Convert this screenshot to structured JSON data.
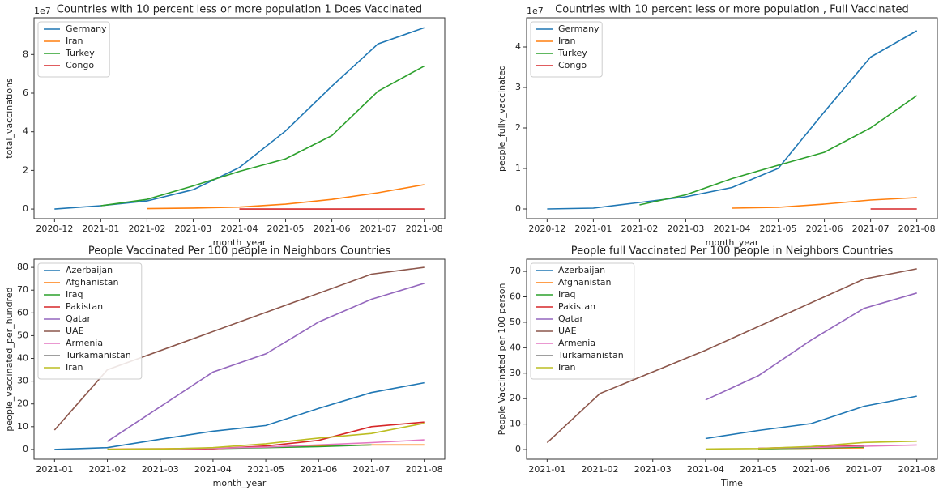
{
  "chart_data": [
    {
      "type": "line",
      "title": "Countries with 10 percent less or more population 1 Does Vaccinated",
      "x_label": "month_year",
      "y_label": "total_vaccinations",
      "y_offset_label": "1e7",
      "categories": [
        "2020-12",
        "2021-01",
        "2021-02",
        "2021-03",
        "2021-04",
        "2021-05",
        "2021-06",
        "2021-07",
        "2021-08"
      ],
      "ylim": [
        -0.5,
        9.9
      ],
      "yticks": [
        0,
        2,
        4,
        6,
        8
      ],
      "legend": "upper left",
      "series": [
        {
          "name": "Germany",
          "color": "#1f77b4",
          "x": [
            "2020-12",
            "2021-01",
            "2021-02",
            "2021-03",
            "2021-04",
            "2021-05",
            "2021-06",
            "2021-07",
            "2021-08"
          ],
          "values": [
            0,
            0.17,
            0.42,
            1.0,
            2.15,
            4.04,
            6.36,
            8.55,
            9.39
          ]
        },
        {
          "name": "Iran",
          "color": "#ff7f0e",
          "x": [
            "2021-02",
            "2021-03",
            "2021-04",
            "2021-05",
            "2021-06",
            "2021-07",
            "2021-08"
          ],
          "values": [
            0.02,
            0.05,
            0.1,
            0.25,
            0.5,
            0.84,
            1.26
          ]
        },
        {
          "name": "Turkey",
          "color": "#2ca02c",
          "x": [
            "2021-01",
            "2021-02",
            "2021-03",
            "2021-04",
            "2021-05",
            "2021-06",
            "2021-07",
            "2021-08"
          ],
          "values": [
            0.17,
            0.5,
            1.2,
            1.95,
            2.6,
            3.8,
            6.1,
            7.4
          ]
        },
        {
          "name": "Congo",
          "color": "#d62728",
          "x": [
            "2021-04",
            "2021-05",
            "2021-06",
            "2021-07",
            "2021-08"
          ],
          "values": [
            0,
            0,
            0,
            0,
            0
          ]
        }
      ]
    },
    {
      "type": "line",
      "title": "Countries with 10 percent less or more population , Full Vaccinated",
      "x_label": "month_year",
      "y_label": "people_fully_vaccinated",
      "y_offset_label": "1e7",
      "categories": [
        "2020-12",
        "2021-01",
        "2021-02",
        "2021-03",
        "2021-04",
        "2021-05",
        "2021-06",
        "2021-07",
        "2021-08"
      ],
      "ylim": [
        -0.24,
        4.72
      ],
      "yticks": [
        0,
        1,
        2,
        3,
        4
      ],
      "legend": "upper left",
      "series": [
        {
          "name": "Germany",
          "color": "#1f77b4",
          "x": [
            "2020-12",
            "2021-01",
            "2021-02",
            "2021-03",
            "2021-04",
            "2021-05",
            "2021-06",
            "2021-07",
            "2021-08"
          ],
          "values": [
            0,
            0.02,
            0.16,
            0.3,
            0.53,
            1.0,
            2.4,
            3.75,
            4.4
          ]
        },
        {
          "name": "Iran",
          "color": "#ff7f0e",
          "x": [
            "2021-04",
            "2021-05",
            "2021-06",
            "2021-07",
            "2021-08"
          ],
          "values": [
            0.02,
            0.04,
            0.12,
            0.22,
            0.28
          ]
        },
        {
          "name": "Turkey",
          "color": "#2ca02c",
          "x": [
            "2021-02",
            "2021-03",
            "2021-04",
            "2021-05",
            "2021-06",
            "2021-07",
            "2021-08"
          ],
          "values": [
            0.1,
            0.35,
            0.75,
            1.08,
            1.4,
            2.0,
            2.8
          ]
        },
        {
          "name": "Congo",
          "color": "#d62728",
          "x": [
            "2021-07",
            "2021-08"
          ],
          "values": [
            0,
            0
          ]
        }
      ]
    },
    {
      "type": "line",
      "title": "People Vaccinated Per 100 people in Neighbors Countries",
      "x_label": "month_year",
      "y_label": "people_vaccinated_per_hundred",
      "categories": [
        "2021-01",
        "2021-02",
        "2021-03",
        "2021-04",
        "2021-05",
        "2021-06",
        "2021-07",
        "2021-08"
      ],
      "ylim": [
        -4.3,
        83.6
      ],
      "yticks": [
        0,
        10,
        20,
        30,
        40,
        50,
        60,
        70,
        80
      ],
      "legend": "upper left",
      "series": [
        {
          "name": "Azerbaijan",
          "color": "#1f77b4",
          "x": [
            "2021-01",
            "2021-02",
            "2021-03",
            "2021-04",
            "2021-05",
            "2021-06",
            "2021-07",
            "2021-08"
          ],
          "values": [
            0,
            0.8,
            4.5,
            8,
            10.5,
            18,
            25,
            29.3
          ]
        },
        {
          "name": "Afghanistan",
          "color": "#ff7f0e",
          "x": [
            "2021-02",
            "2021-03",
            "2021-04",
            "2021-05",
            "2021-06",
            "2021-07",
            "2021-08"
          ],
          "values": [
            0.1,
            0.3,
            0.5,
            1,
            1.5,
            2,
            2
          ]
        },
        {
          "name": "Iraq",
          "color": "#2ca02c",
          "x": [
            "2021-02",
            "2021-03",
            "2021-04",
            "2021-05",
            "2021-06",
            "2021-07"
          ],
          "values": [
            0,
            0.2,
            0.4,
            0.8,
            1.2,
            2
          ]
        },
        {
          "name": "Pakistan",
          "color": "#d62728",
          "x": [
            "2021-03",
            "2021-04",
            "2021-05",
            "2021-06",
            "2021-07",
            "2021-08"
          ],
          "values": [
            0.1,
            0.3,
            1.5,
            4,
            10,
            12
          ]
        },
        {
          "name": "Qatar",
          "color": "#9467bd",
          "x": [
            "2021-02",
            "2021-04",
            "2021-05",
            "2021-06",
            "2021-07",
            "2021-08"
          ],
          "values": [
            3.5,
            34,
            42,
            56,
            66,
            73
          ]
        },
        {
          "name": "UAE",
          "color": "#8c564b",
          "x": [
            "2021-01",
            "2021-02",
            "2021-07",
            "2021-08"
          ],
          "values": [
            8.5,
            35,
            77,
            80
          ]
        },
        {
          "name": "Armenia",
          "color": "#e377c2",
          "x": [
            "2021-03",
            "2021-04",
            "2021-05",
            "2021-06",
            "2021-07",
            "2021-08"
          ],
          "values": [
            0.1,
            0.5,
            1,
            2,
            3,
            4.2
          ]
        },
        {
          "name": "Turkamanistan",
          "color": "#7f7f7f",
          "x": [],
          "values": []
        },
        {
          "name": "Iran",
          "color": "#bcbd22",
          "x": [
            "2021-02",
            "2021-03",
            "2021-04",
            "2021-05",
            "2021-06",
            "2021-07",
            "2021-08"
          ],
          "values": [
            0,
            0.2,
            0.8,
            2.5,
            5,
            7,
            11.5
          ]
        }
      ]
    },
    {
      "type": "line",
      "title": "People  full Vaccinated Per 100 people in Neighbors Countries",
      "x_label": "Time",
      "y_label": "People Vaccinated per 100  person",
      "categories": [
        "2021-01",
        "2021-02",
        "2021-03",
        "2021-04",
        "2021-05",
        "2021-06",
        "2021-07",
        "2021-08"
      ],
      "ylim": [
        -3.8,
        74.8
      ],
      "yticks": [
        0,
        10,
        20,
        30,
        40,
        50,
        60,
        70
      ],
      "legend": "upper left",
      "series": [
        {
          "name": "Azerbaijan",
          "color": "#1f77b4",
          "x": [
            "2021-04",
            "2021-05",
            "2021-06",
            "2021-07",
            "2021-08"
          ],
          "values": [
            4.3,
            7.5,
            10.2,
            17,
            21
          ]
        },
        {
          "name": "Afghanistan",
          "color": "#ff7f0e",
          "x": [
            "2021-05",
            "2021-06",
            "2021-07"
          ],
          "values": [
            0.3,
            0.5,
            0.7
          ]
        },
        {
          "name": "Iraq",
          "color": "#2ca02c",
          "x": [
            "2021-05",
            "2021-06",
            "2021-07"
          ],
          "values": [
            0.3,
            0.6,
            1
          ]
        },
        {
          "name": "Pakistan",
          "color": "#d62728",
          "x": [
            "2021-05",
            "2021-06",
            "2021-07"
          ],
          "values": [
            0.5,
            1,
            1.5
          ]
        },
        {
          "name": "Qatar",
          "color": "#9467bd",
          "x": [
            "2021-04",
            "2021-05",
            "2021-06",
            "2021-07",
            "2021-08"
          ],
          "values": [
            19.5,
            29,
            43,
            55.5,
            61.5
          ]
        },
        {
          "name": "UAE",
          "color": "#8c564b",
          "x": [
            "2021-01",
            "2021-02",
            "2021-04",
            "2021-07",
            "2021-08"
          ],
          "values": [
            2.7,
            22,
            39,
            67,
            71
          ]
        },
        {
          "name": "Armenia",
          "color": "#e377c2",
          "x": [
            "2021-05",
            "2021-06",
            "2021-07",
            "2021-08"
          ],
          "values": [
            0.5,
            0.8,
            1.3,
            1.8
          ]
        },
        {
          "name": "Turkamanistan",
          "color": "#7f7f7f",
          "x": [],
          "values": []
        },
        {
          "name": "Iran",
          "color": "#bcbd22",
          "x": [
            "2021-04",
            "2021-05",
            "2021-06",
            "2021-07",
            "2021-08"
          ],
          "values": [
            0.2,
            0.4,
            1.2,
            2.8,
            3.3
          ]
        }
      ]
    }
  ]
}
